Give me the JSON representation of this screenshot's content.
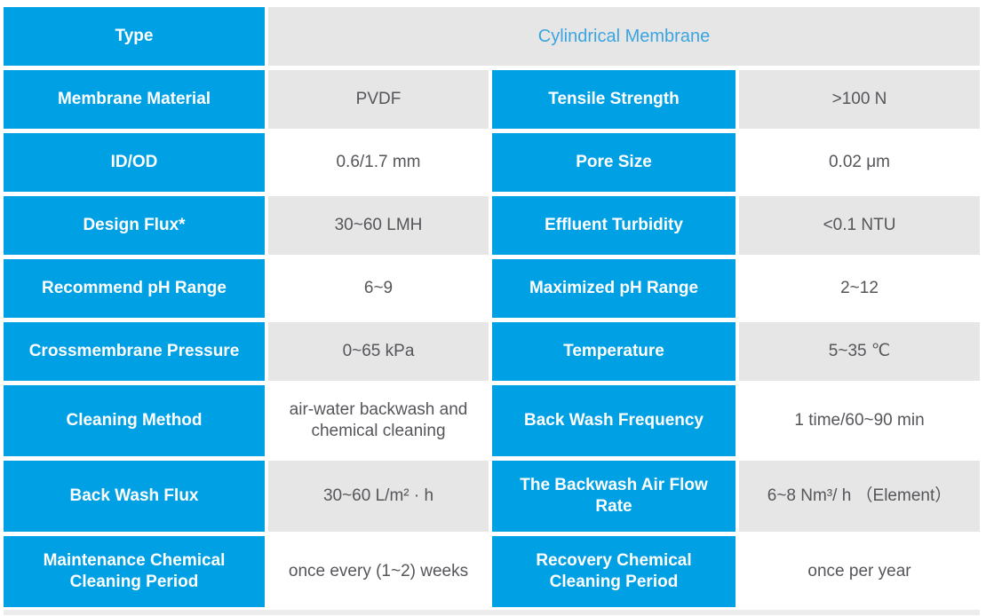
{
  "colors": {
    "blue": "#00A0E4",
    "cell-gray": "#E6E6E6",
    "value-text": "#55565A",
    "title-blue": "#3AA5E0",
    "strip": "#ECECEC"
  },
  "table": {
    "type_row": {
      "label": "Type",
      "value": "Cylindrical Membrane"
    },
    "rows": [
      {
        "label_left": "Membrane Material",
        "value_left": "PVDF",
        "label_right": "Tensile Strength",
        "value_right": ">100 N"
      },
      {
        "label_left": "ID/OD",
        "value_left": "0.6/1.7 mm",
        "label_right": "Pore Size",
        "value_right": "0.02 μm"
      },
      {
        "label_left": "Design Flux*",
        "value_left": "30~60 LMH",
        "label_right": "Effluent Turbidity",
        "value_right": "<0.1 NTU"
      },
      {
        "label_left": "Recommend pH Range",
        "value_left": "6~9",
        "label_right": "Maximized pH Range",
        "value_right": "2~12"
      },
      {
        "label_left": "Crossmembrane Pressure",
        "value_left": "0~65 kPa",
        "label_right": "Temperature",
        "value_right": "5~35 ℃"
      },
      {
        "label_left": "Cleaning Method",
        "value_left": "air-water backwash and chemical cleaning",
        "label_right": "Back Wash Frequency",
        "value_right": "1 time/60~90 min"
      },
      {
        "label_left": "Back Wash Flux",
        "value_left": "30~60 L/m² · h",
        "label_right": "The Backwash Air Flow Rate",
        "value_right": "6~8 Nm³/ h （Element）"
      },
      {
        "label_left": "Maintenance Chemical Cleaning Period",
        "value_left": "once every (1~2) weeks",
        "label_right": "Recovery Chemical Cleaning Period",
        "value_right": "once per year"
      }
    ]
  }
}
